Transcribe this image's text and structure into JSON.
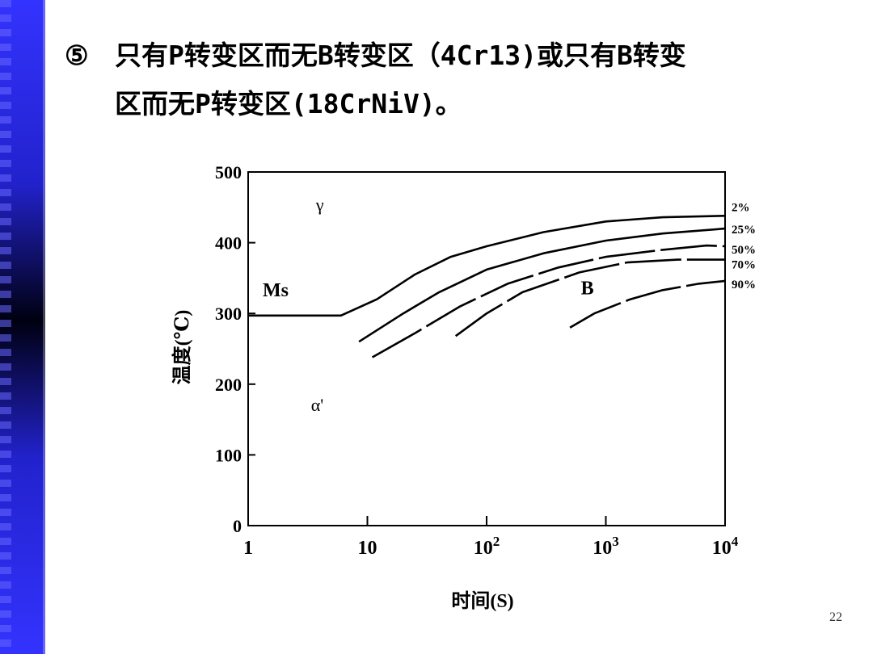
{
  "slide": {
    "bullet": "⑤",
    "title_line1": "只有P转变区而无B转变区（4Cr13)或只有B转变",
    "title_line2": "区而无P转变区(18CrNiV)。",
    "page_number": "22"
  },
  "chart_data": {
    "type": "line",
    "title": "",
    "xlabel": "时间(S)",
    "ylabel": "温度(℃)",
    "x_scale": "log",
    "xlim": [
      1,
      10000
    ],
    "ylim": [
      0,
      500
    ],
    "x_ticks": [
      {
        "value": 1,
        "label": "1",
        "exp": ""
      },
      {
        "value": 10,
        "label": "10",
        "exp": ""
      },
      {
        "value": 100,
        "label": "10",
        "exp": "2"
      },
      {
        "value": 1000,
        "label": "10",
        "exp": "3"
      },
      {
        "value": 10000,
        "label": "10",
        "exp": "4"
      }
    ],
    "y_ticks": [
      0,
      100,
      200,
      300,
      400,
      500
    ],
    "y_tick_labels": [
      "0",
      "100",
      "200",
      "300",
      "400",
      "500"
    ],
    "grid": false,
    "series": [
      {
        "name": "2%",
        "dashed": false,
        "points": [
          [
            1,
            297
          ],
          [
            6,
            297
          ],
          [
            12,
            320
          ],
          [
            25,
            355
          ],
          [
            50,
            380
          ],
          [
            100,
            395
          ],
          [
            300,
            415
          ],
          [
            1000,
            430
          ],
          [
            3000,
            436
          ],
          [
            10000,
            438
          ]
        ]
      },
      {
        "name": "25%",
        "dashed": false,
        "points": [
          [
            8.5,
            260
          ],
          [
            20,
            300
          ],
          [
            40,
            330
          ],
          [
            100,
            362
          ],
          [
            300,
            385
          ],
          [
            1000,
            403
          ],
          [
            3000,
            413
          ],
          [
            10000,
            420
          ]
        ]
      },
      {
        "name": "50%",
        "dashed": true,
        "points": [
          [
            11,
            238
          ],
          [
            25,
            272
          ],
          [
            60,
            310
          ],
          [
            150,
            342
          ],
          [
            400,
            365
          ],
          [
            1000,
            380
          ],
          [
            3000,
            390
          ],
          [
            7000,
            396
          ],
          [
            10000,
            395
          ]
        ]
      },
      {
        "name": "70%",
        "dashed": true,
        "points": [
          [
            55,
            268
          ],
          [
            100,
            300
          ],
          [
            200,
            330
          ],
          [
            600,
            358
          ],
          [
            1500,
            372
          ],
          [
            4000,
            376
          ],
          [
            10000,
            376
          ]
        ]
      },
      {
        "name": "90%",
        "dashed": true,
        "points": [
          [
            500,
            280
          ],
          [
            800,
            300
          ],
          [
            1600,
            320
          ],
          [
            3000,
            333
          ],
          [
            6000,
            342
          ],
          [
            10000,
            346
          ]
        ]
      }
    ],
    "annotations": [
      {
        "text": "γ",
        "x": 4,
        "y": 445
      },
      {
        "text": "Ms",
        "x": 1.7,
        "y": 324
      },
      {
        "text": "B",
        "x": 700,
        "y": 327
      },
      {
        "text": "α'",
        "x": 3.8,
        "y": 162
      }
    ],
    "line_color": "#000000"
  }
}
